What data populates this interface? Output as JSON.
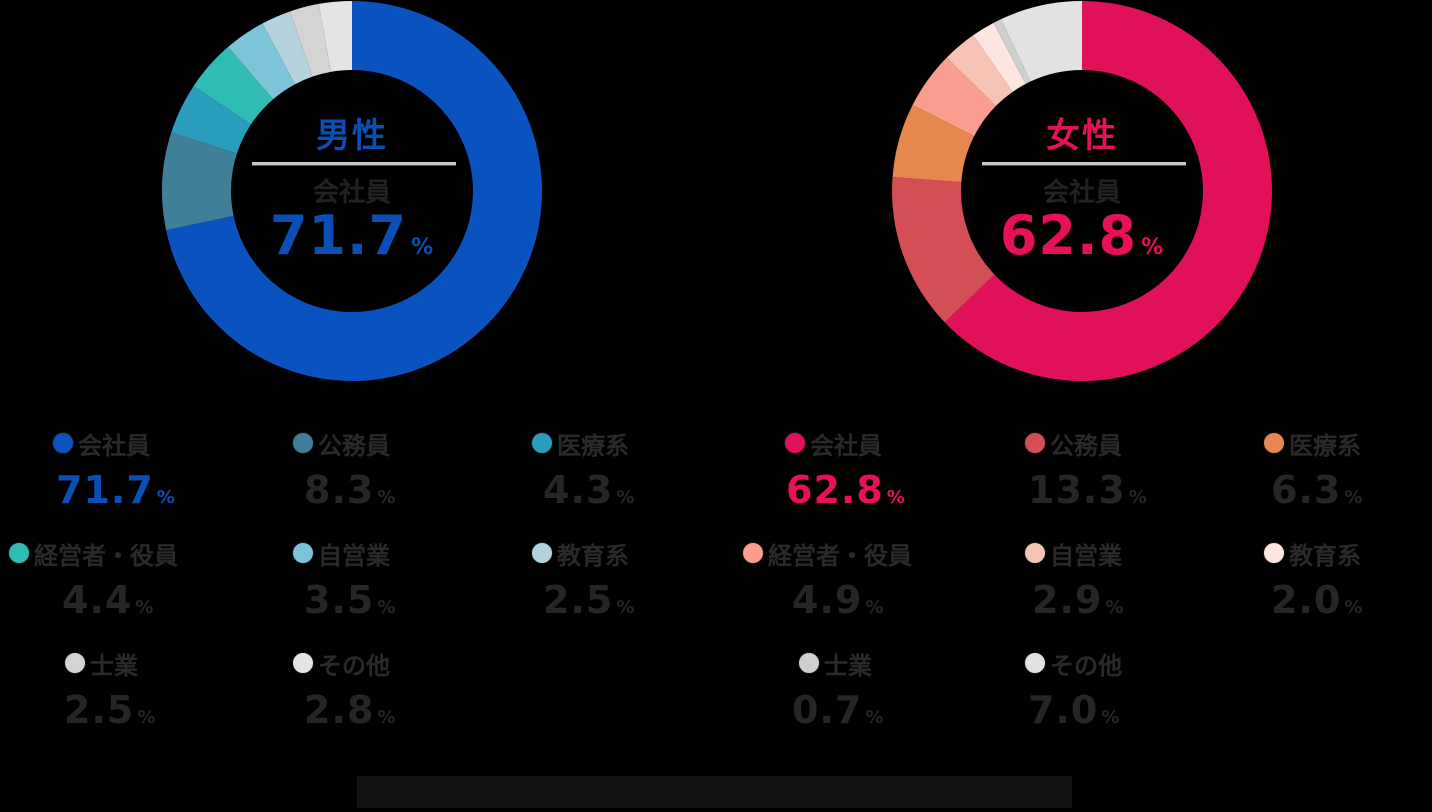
{
  "male": {
    "gender_label": "男性",
    "center_category": "会社員",
    "center_value": "71.7",
    "center_unit": "%",
    "accent": "#0a4fb5",
    "legend": [
      {
        "label": "会社員",
        "value": "71.7",
        "unit": "%",
        "color": "#0a52bf"
      },
      {
        "label": "公務員",
        "value": "8.3",
        "unit": "%",
        "color": "#3f7f98"
      },
      {
        "label": "医療系",
        "value": "4.3",
        "unit": "%",
        "color": "#2a9cbc"
      },
      {
        "label": "経営者・役員",
        "value": "4.4",
        "unit": "%",
        "color": "#2fbcb4"
      },
      {
        "label": "自営業",
        "value": "3.5",
        "unit": "%",
        "color": "#7ec4d9"
      },
      {
        "label": "教育系",
        "value": "2.5",
        "unit": "%",
        "color": "#b5d3de"
      },
      {
        "label": "士業",
        "value": "2.5",
        "unit": "%",
        "color": "#d4d4d4"
      },
      {
        "label": "その他",
        "value": "2.8",
        "unit": "%",
        "color": "#e4e4e4"
      }
    ]
  },
  "female": {
    "gender_label": "女性",
    "center_category": "会社員",
    "center_value": "62.8",
    "center_unit": "%",
    "accent": "#e8105a",
    "legend": [
      {
        "label": "会社員",
        "value": "62.8",
        "unit": "%",
        "color": "#e0105a"
      },
      {
        "label": "公務員",
        "value": "13.3",
        "unit": "%",
        "color": "#d44f55"
      },
      {
        "label": "医療系",
        "value": "6.3",
        "unit": "%",
        "color": "#e5874f"
      },
      {
        "label": "経営者・役員",
        "value": "4.9",
        "unit": "%",
        "color": "#fb9e90"
      },
      {
        "label": "自営業",
        "value": "2.9",
        "unit": "%",
        "color": "#f6c4b4"
      },
      {
        "label": "教育系",
        "value": "2.0",
        "unit": "%",
        "color": "#fde6df"
      },
      {
        "label": "士業",
        "value": "0.7",
        "unit": "%",
        "color": "#cfcfcf"
      },
      {
        "label": "その他",
        "value": "7.0",
        "unit": "%",
        "color": "#e2e2e2"
      }
    ]
  },
  "chart_data": [
    {
      "type": "pie",
      "title": "男性",
      "subtype": "donut",
      "center_label": "会社員 71.7%",
      "categories": [
        "会社員",
        "公務員",
        "医療系",
        "経営者・役員",
        "自営業",
        "教育系",
        "士業",
        "その他"
      ],
      "values": [
        71.7,
        8.3,
        4.3,
        4.4,
        3.5,
        2.5,
        2.5,
        2.8
      ],
      "colors": [
        "#0a52bf",
        "#3f7f98",
        "#2a9cbc",
        "#2fbcb4",
        "#7ec4d9",
        "#b5d3de",
        "#d4d4d4",
        "#e4e4e4"
      ],
      "unit": "%",
      "legend_position": "bottom"
    },
    {
      "type": "pie",
      "title": "女性",
      "subtype": "donut",
      "center_label": "会社員 62.8%",
      "categories": [
        "会社員",
        "公務員",
        "医療系",
        "経営者・役員",
        "自営業",
        "教育系",
        "士業",
        "その他"
      ],
      "values": [
        62.8,
        13.3,
        6.3,
        4.9,
        2.9,
        2.0,
        0.7,
        7.0
      ],
      "colors": [
        "#e0105a",
        "#d44f55",
        "#e5874f",
        "#fb9e90",
        "#f6c4b4",
        "#fde6df",
        "#cfcfcf",
        "#e2e2e2"
      ],
      "unit": "%",
      "legend_position": "bottom"
    }
  ]
}
